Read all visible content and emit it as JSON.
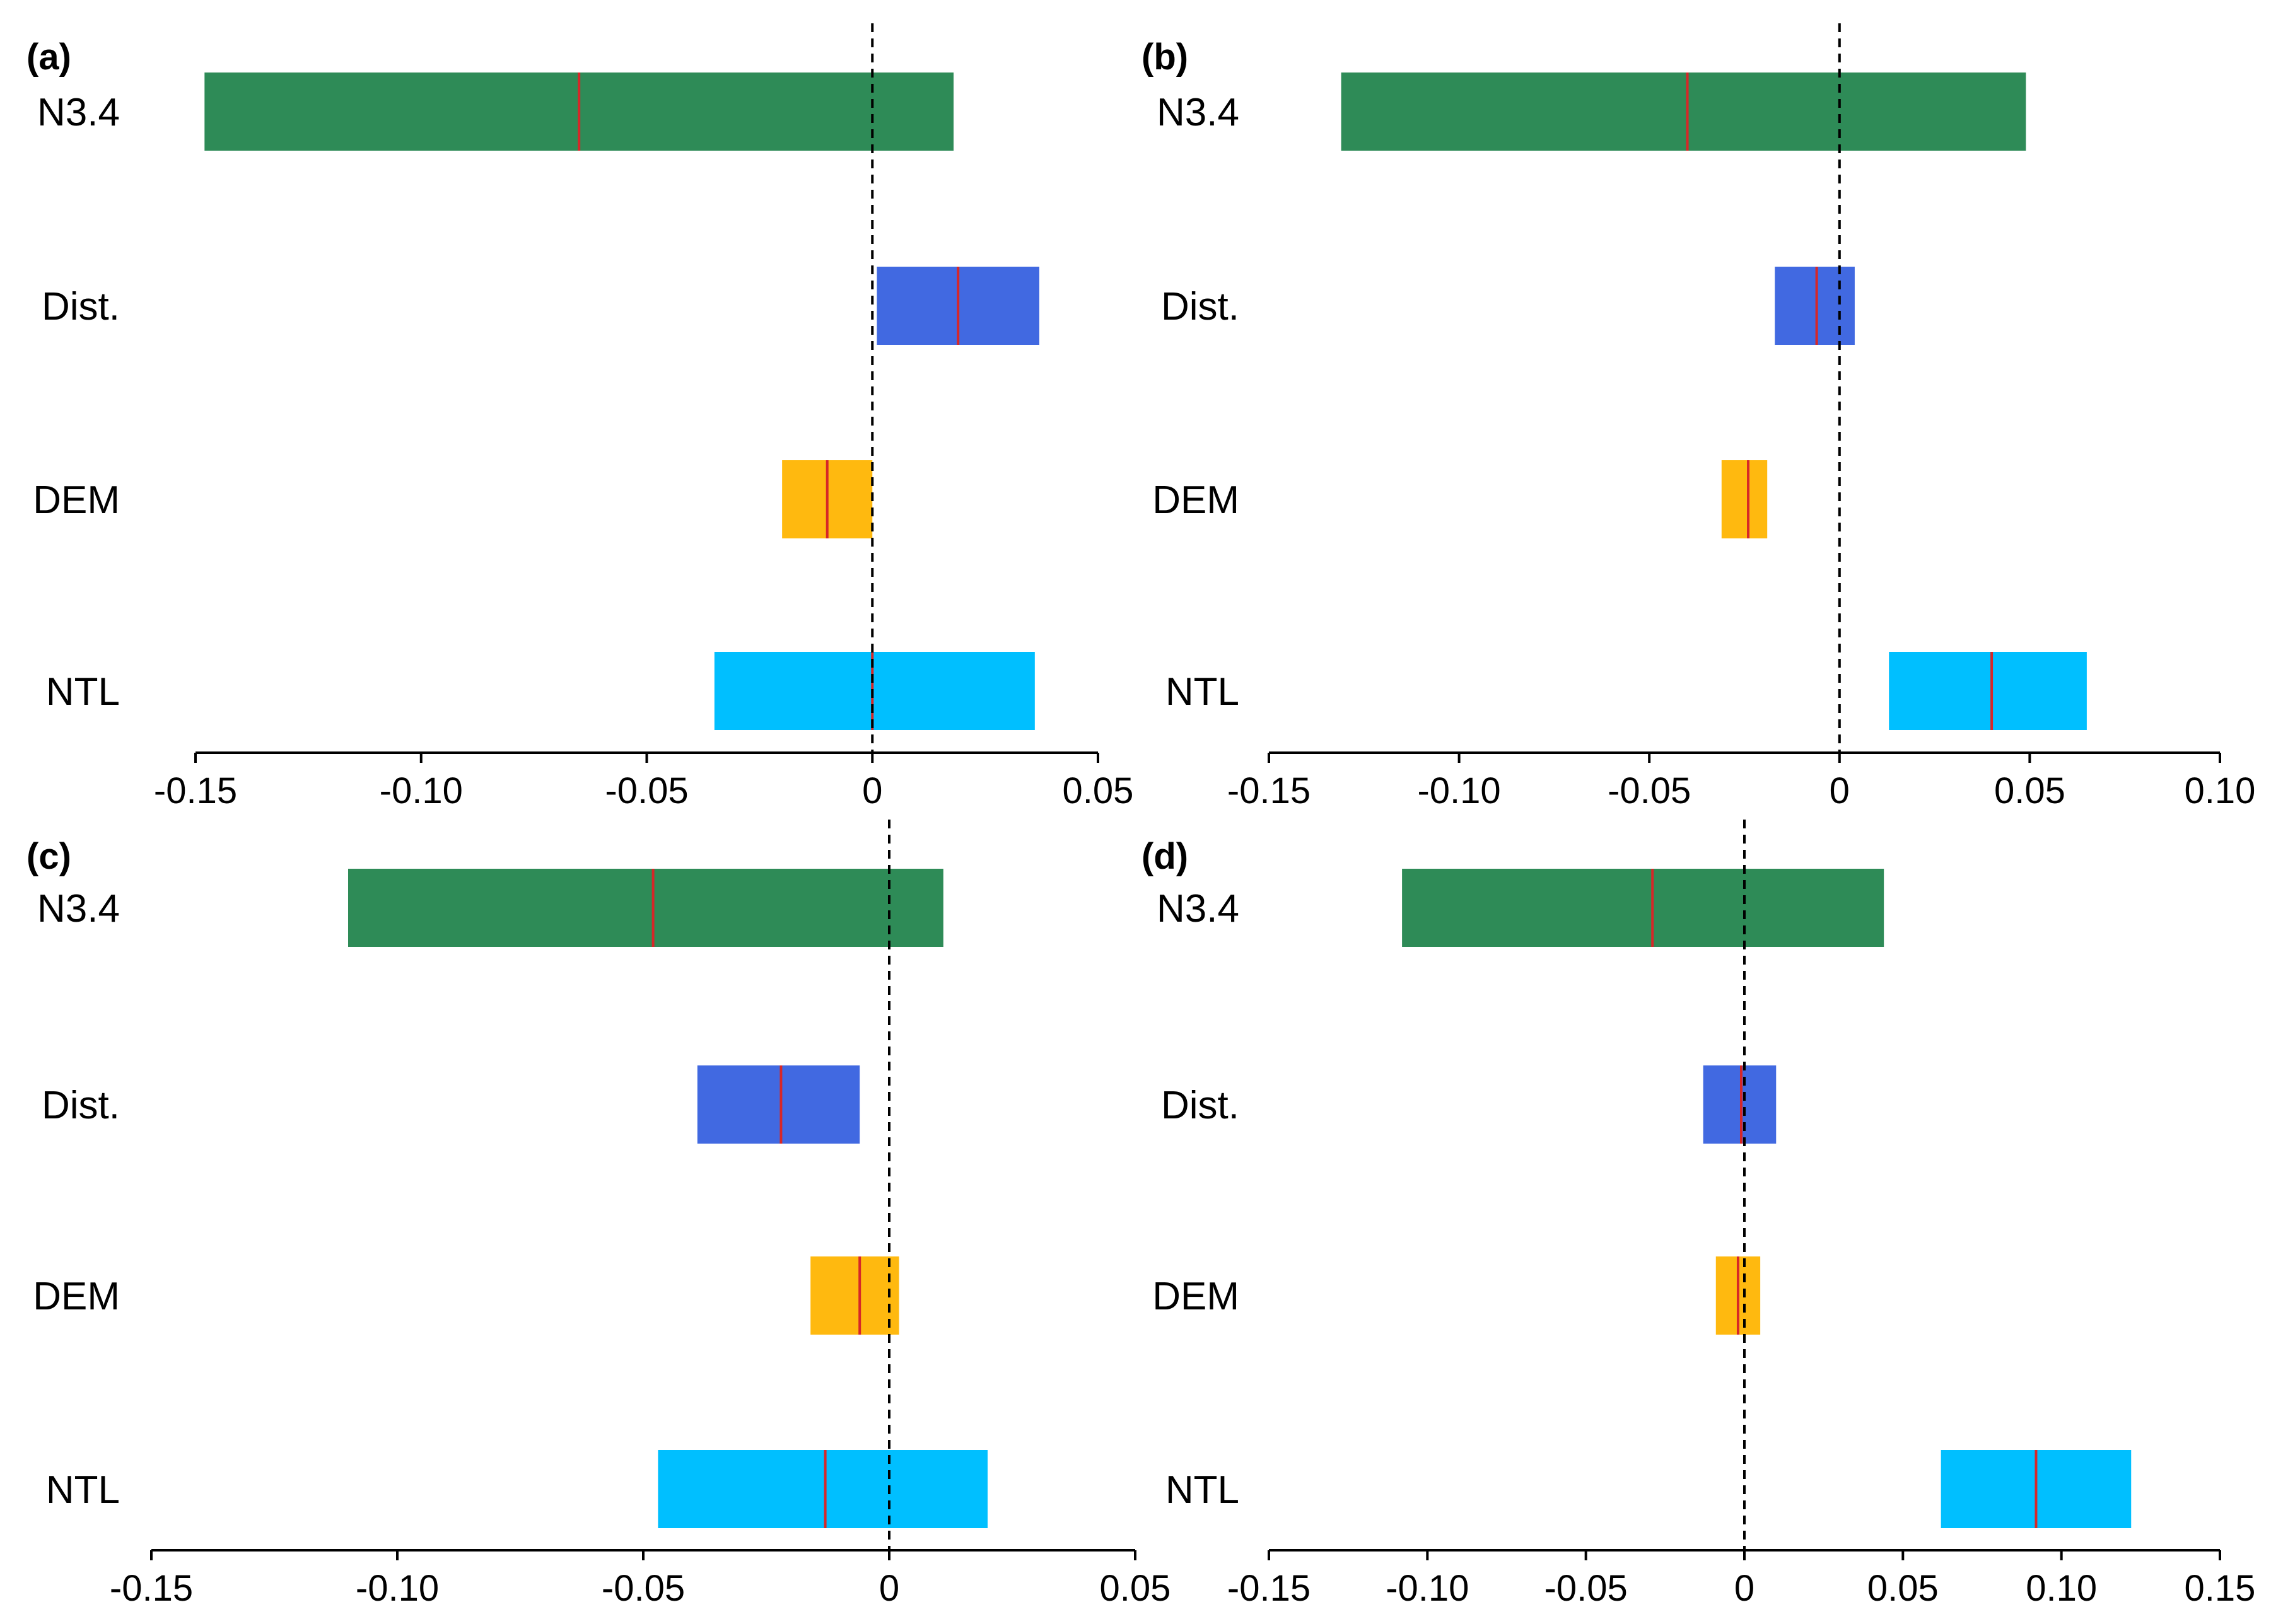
{
  "colors": {
    "N3.4": "#2e8b57",
    "Dist.": "#4169e1",
    "DEM": "#ffb90f",
    "NTL": "#00bfff",
    "median_line": "#d62728",
    "zero_line": "#000000"
  },
  "chart_data": [
    {
      "type": "bar",
      "panel_label": "(a)",
      "categories": [
        "N3.4",
        "Dist.",
        "DEM",
        "NTL"
      ],
      "ranges": [
        {
          "low": -0.148,
          "high": 0.018,
          "median": -0.065
        },
        {
          "low": 0.001,
          "high": 0.037,
          "median": 0.019
        },
        {
          "low": -0.02,
          "high": 0.0,
          "median": -0.01
        },
        {
          "low": -0.035,
          "high": 0.036,
          "median": 0.0
        }
      ],
      "xlim": [
        -0.15,
        0.05
      ],
      "xticks": [
        -0.15,
        -0.1,
        -0.05,
        0,
        0.05
      ],
      "xtick_labels": [
        "-0.15",
        "-0.10",
        "-0.05",
        "0",
        "0.05"
      ],
      "reference_line": 0
    },
    {
      "type": "bar",
      "panel_label": "(b)",
      "categories": [
        "N3.4",
        "Dist.",
        "DEM",
        "NTL"
      ],
      "ranges": [
        {
          "low": -0.131,
          "high": 0.049,
          "median": -0.04
        },
        {
          "low": -0.017,
          "high": 0.004,
          "median": -0.006
        },
        {
          "low": -0.031,
          "high": -0.019,
          "median": -0.024
        },
        {
          "low": 0.013,
          "high": 0.065,
          "median": 0.04
        }
      ],
      "xlim": [
        -0.15,
        0.1
      ],
      "xticks": [
        -0.15,
        -0.1,
        -0.05,
        0,
        0.05,
        0.1
      ],
      "xtick_labels": [
        "-0.15",
        "-0.10",
        "-0.05",
        "0",
        "0.05",
        "0.10"
      ],
      "reference_line": 0
    },
    {
      "type": "bar",
      "panel_label": "(c)",
      "categories": [
        "N3.4",
        "Dist.",
        "DEM",
        "NTL"
      ],
      "ranges": [
        {
          "low": -0.11,
          "high": 0.011,
          "median": -0.048
        },
        {
          "low": -0.039,
          "high": -0.006,
          "median": -0.022
        },
        {
          "low": -0.016,
          "high": 0.002,
          "median": -0.006
        },
        {
          "low": -0.047,
          "high": 0.02,
          "median": -0.013
        }
      ],
      "xlim": [
        -0.15,
        0.05
      ],
      "xticks": [
        -0.15,
        -0.1,
        -0.05,
        0,
        0.05
      ],
      "xtick_labels": [
        "-0.15",
        "-0.10",
        "-0.05",
        "0",
        "0.05"
      ],
      "reference_line": 0
    },
    {
      "type": "bar",
      "panel_label": "(d)",
      "categories": [
        "N3.4",
        "Dist.",
        "DEM",
        "NTL"
      ],
      "ranges": [
        {
          "low": -0.108,
          "high": 0.044,
          "median": -0.029
        },
        {
          "low": -0.013,
          "high": 0.01,
          "median": -0.001
        },
        {
          "low": -0.009,
          "high": 0.005,
          "median": -0.002
        },
        {
          "low": 0.062,
          "high": 0.122,
          "median": 0.092
        }
      ],
      "xlim": [
        -0.15,
        0.15
      ],
      "xticks": [
        -0.15,
        -0.1,
        -0.05,
        0,
        0.05,
        0.1,
        0.15
      ],
      "xtick_labels": [
        "-0.15",
        "-0.10",
        "-0.05",
        "0",
        "0.05",
        "0.10",
        "0.15"
      ],
      "reference_line": 0
    }
  ]
}
